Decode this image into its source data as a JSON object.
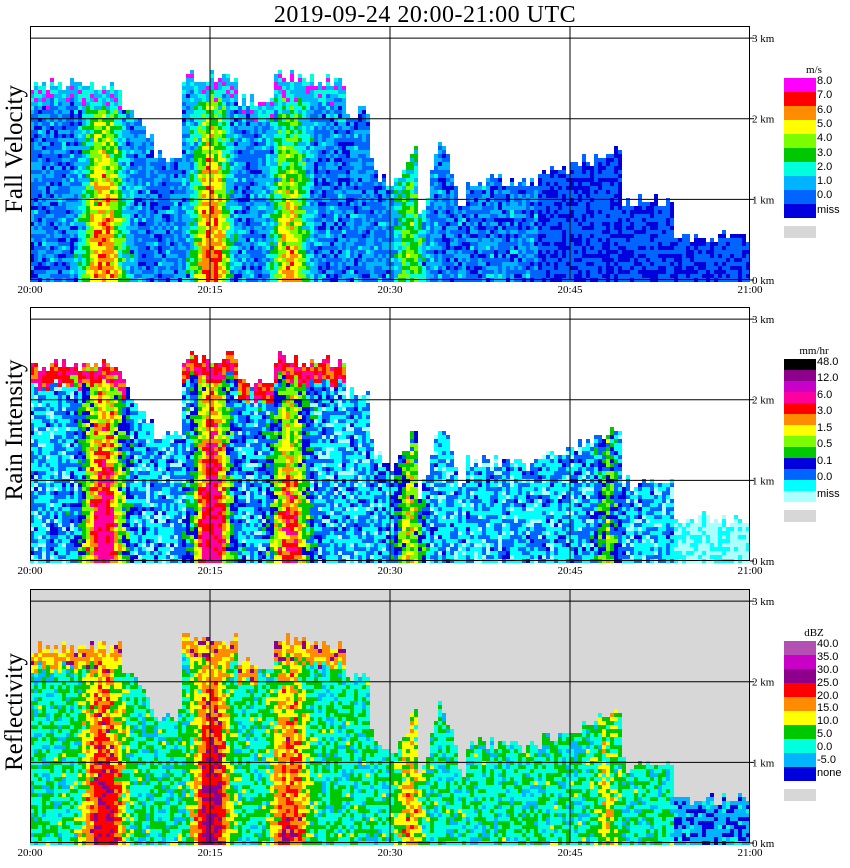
{
  "title": "2019-09-24   20:00-21:00 UTC",
  "time_ticks": [
    "20:00",
    "20:15",
    "20:30",
    "20:45",
    "21:00"
  ],
  "height_ticks": [
    "0 km",
    "1 km",
    "2 km",
    "3 km"
  ],
  "chart_data": [
    {
      "type": "heatmap",
      "ylabel": "Fall Velocity",
      "unit": "m/s",
      "x_range": [
        "20:00",
        "21:00"
      ],
      "y_range_km": [
        0,
        3
      ],
      "grid": true,
      "legend": {
        "levels": [
          "8.0",
          "7.0",
          "6.0",
          "5.0",
          "4.0",
          "3.0",
          "2.0",
          "1.0",
          "0.0",
          "miss"
        ],
        "colors": [
          "#ff00ff",
          "#ff0000",
          "#ff8c00",
          "#ffff00",
          "#7cfc00",
          "#00c800",
          "#00ffdc",
          "#00b4ff",
          "#0064ff",
          "#0000dc",
          "#d7d7d7"
        ]
      }
    },
    {
      "type": "heatmap",
      "ylabel": "Rain Intensity",
      "unit": "mm/hr",
      "x_range": [
        "20:00",
        "21:00"
      ],
      "y_range_km": [
        0,
        3
      ],
      "grid": true,
      "legend": {
        "levels": [
          "48.0",
          "12.0",
          "6.0",
          "3.0",
          "1.5",
          "0.5",
          "0.1",
          "0.0",
          "miss"
        ],
        "colors": [
          "#000000",
          "#8c008c",
          "#c800c8",
          "#ff00a0",
          "#ff0000",
          "#ff8c00",
          "#ffff00",
          "#7cfc00",
          "#00c800",
          "#0000dc",
          "#0064ff",
          "#00ffff",
          "#aaffff",
          "#d7d7d7"
        ]
      }
    },
    {
      "type": "heatmap",
      "ylabel": "Reflectivity",
      "unit": "dBZ",
      "x_range": [
        "20:00",
        "21:00"
      ],
      "y_range_km": [
        0,
        3
      ],
      "grid": true,
      "legend": {
        "levels": [
          "40.0",
          "35.0",
          "30.0",
          "25.0",
          "20.0",
          "15.0",
          "10.0",
          "5.0",
          "0.0",
          "-5.0",
          "none"
        ],
        "colors": [
          "#b450b4",
          "#c800c8",
          "#8c008c",
          "#ff0000",
          "#ff8c00",
          "#ffff00",
          "#00c800",
          "#00ffdc",
          "#00b4ff",
          "#0000dc",
          "#d7d7d7"
        ]
      }
    }
  ]
}
